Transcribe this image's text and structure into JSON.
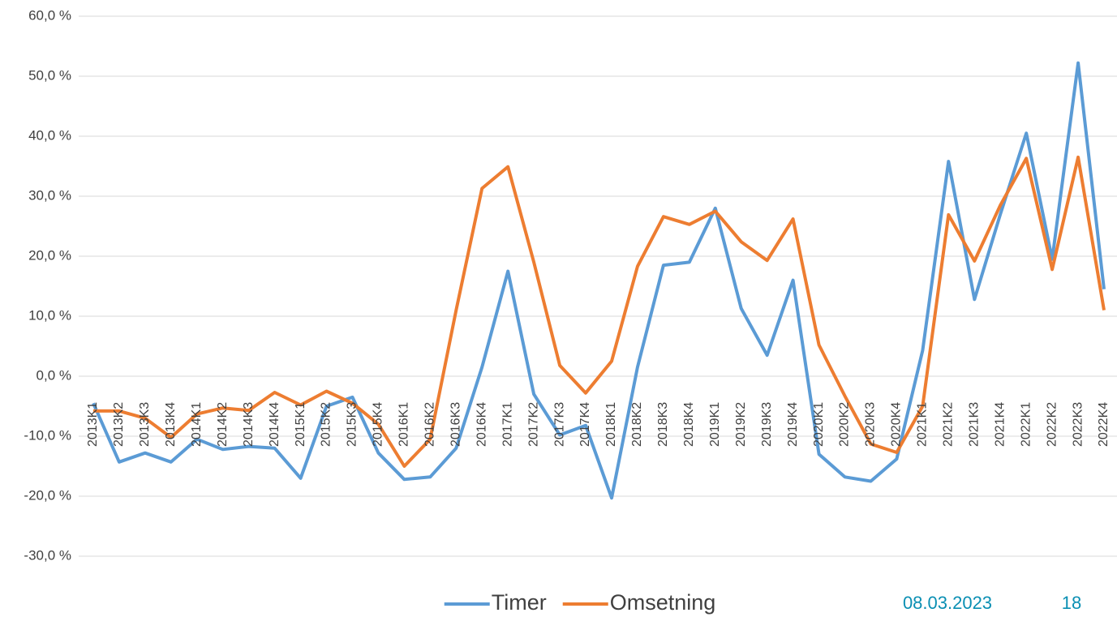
{
  "chart_data": {
    "type": "line",
    "categories": [
      "2013K1",
      "2013K2",
      "2013K3",
      "2013K4",
      "2014K1",
      "2014K2",
      "2014K3",
      "2014K4",
      "2015K1",
      "2015K2",
      "2015K3",
      "2015K4",
      "2016K1",
      "2016K2",
      "2016K3",
      "2016K4",
      "2017K1",
      "2017K2",
      "2017K3",
      "2017K4",
      "2018K1",
      "2018K2",
      "2018K3",
      "2018K4",
      "2019K1",
      "2019K2",
      "2019K3",
      "2019K4",
      "2020K1",
      "2020K2",
      "2020K3",
      "2020K4",
      "2021K1",
      "2021K2",
      "2021K3",
      "2021K4",
      "2022K1",
      "2022K2",
      "2022K3",
      "2022K4"
    ],
    "series": [
      {
        "name": "Timer",
        "color": "#5b9bd5",
        "values": [
          -4.5,
          -14.3,
          -12.8,
          -14.3,
          -10.5,
          -12.2,
          -11.7,
          -12.0,
          -17.0,
          -5.0,
          -3.5,
          -12.8,
          -17.2,
          -16.8,
          -12.0,
          1.5,
          17.5,
          -3.0,
          -9.8,
          -8.2,
          -20.3,
          1.5,
          18.5,
          19.0,
          28.0,
          11.3,
          3.5,
          16.0,
          -13.0,
          -16.8,
          -17.5,
          -13.8,
          4.3,
          35.8,
          12.8,
          27.0,
          40.5,
          19.5,
          52.2,
          14.5
        ]
      },
      {
        "name": "Omsetning",
        "color": "#ed7d31",
        "values": [
          -5.8,
          -5.8,
          -7.0,
          -10.2,
          -6.3,
          -5.3,
          -5.7,
          -2.7,
          -4.8,
          -2.5,
          -4.5,
          -8.0,
          -15.0,
          -10.5,
          11.0,
          31.3,
          34.9,
          19.0,
          1.8,
          -2.8,
          2.5,
          18.3,
          26.6,
          25.3,
          27.5,
          22.4,
          19.3,
          26.2,
          5.2,
          -3.3,
          -11.3,
          -12.7,
          -5.0,
          26.9,
          19.2,
          28.5,
          36.3,
          17.8,
          36.5,
          11.0
        ]
      }
    ],
    "ylim": [
      -30,
      60
    ],
    "yticks": [
      {
        "value": -30,
        "label": "-30,0 %"
      },
      {
        "value": -20,
        "label": "-20,0 %"
      },
      {
        "value": -10,
        "label": "-10,0 %"
      },
      {
        "value": 0,
        "label": "0,0 %"
      },
      {
        "value": 10,
        "label": "10,0 %"
      },
      {
        "value": 20,
        "label": "20,0 %"
      },
      {
        "value": 30,
        "label": "30,0 %"
      },
      {
        "value": 40,
        "label": "40,0 %"
      },
      {
        "value": 50,
        "label": "50,0 %"
      },
      {
        "value": 60,
        "label": "60,0 %"
      }
    ],
    "grid": true,
    "legend": "bottom"
  },
  "footer": {
    "date": "08.03.2023",
    "page": "18"
  }
}
